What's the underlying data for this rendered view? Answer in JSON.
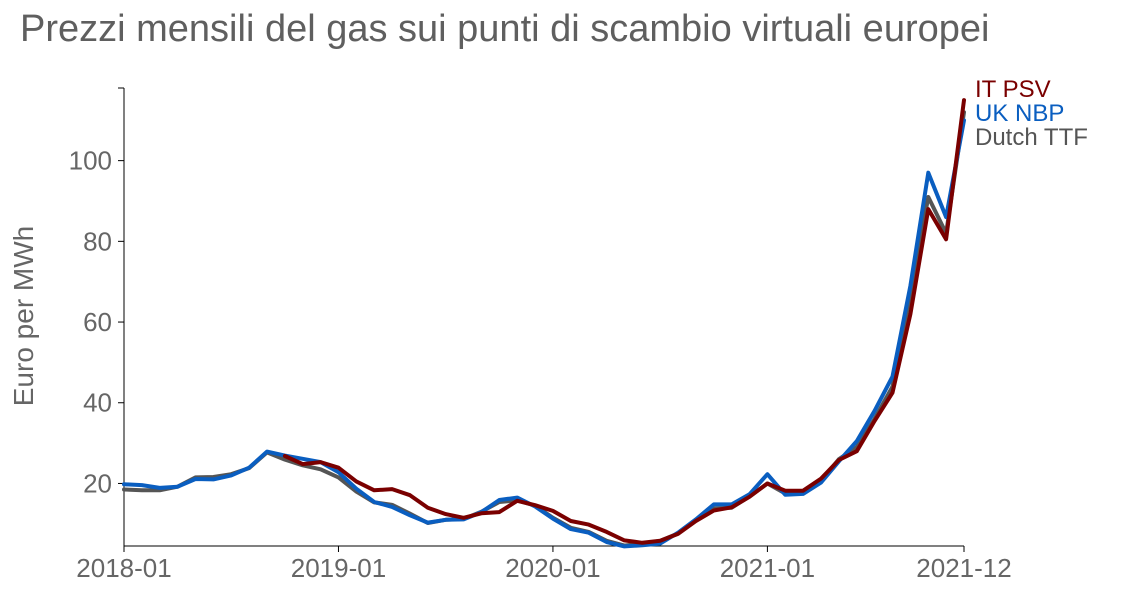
{
  "chart_data": {
    "type": "line",
    "title": "Prezzi mensili del gas sui punti di scambio virtuali europei",
    "ylabel": "Euro per MWh",
    "xlabel": "",
    "x_ticks": [
      "2018-01",
      "2019-01",
      "2020-01",
      "2021-01",
      "2021-12"
    ],
    "y_ticks": [
      20,
      40,
      60,
      80,
      100
    ],
    "ylim": [
      4.5,
      118
    ],
    "xlim": [
      "2018-01",
      "2021-12"
    ],
    "grid": false,
    "legend_placement": "end-of-lines",
    "x": [
      "2018-01",
      "2018-02",
      "2018-03",
      "2018-04",
      "2018-05",
      "2018-06",
      "2018-07",
      "2018-08",
      "2018-09",
      "2018-10",
      "2018-11",
      "2018-12",
      "2019-01",
      "2019-02",
      "2019-03",
      "2019-04",
      "2019-05",
      "2019-06",
      "2019-07",
      "2019-08",
      "2019-09",
      "2019-10",
      "2019-11",
      "2019-12",
      "2020-01",
      "2020-02",
      "2020-03",
      "2020-04",
      "2020-05",
      "2020-06",
      "2020-07",
      "2020-08",
      "2020-09",
      "2020-10",
      "2020-11",
      "2020-12",
      "2021-01",
      "2021-02",
      "2021-03",
      "2021-04",
      "2021-05",
      "2021-06",
      "2021-07",
      "2021-08",
      "2021-09",
      "2021-10",
      "2021-11",
      "2021-12"
    ],
    "series": [
      {
        "name": "Dutch TTF",
        "color": "#555555",
        "values": [
          18.5,
          18.3,
          18.3,
          19.2,
          21.5,
          21.6,
          22.3,
          23.8,
          27.7,
          25.9,
          24.5,
          23.5,
          21.5,
          18.0,
          15.3,
          14.7,
          12.5,
          10.2,
          11.0,
          11.2,
          13.0,
          15.4,
          15.8,
          14.5,
          11.5,
          9.0,
          8.0,
          5.8,
          4.6,
          5.1,
          5.8,
          7.6,
          11.0,
          13.8,
          14.0,
          16.8,
          20.0,
          17.5,
          17.8,
          20.7,
          26.0,
          29.0,
          36.0,
          44.0,
          67.0,
          91.0,
          82.0,
          112.0
        ]
      },
      {
        "name": "UK NBP",
        "color": "#0a5ec0",
        "values": [
          19.8,
          19.6,
          18.9,
          19.2,
          21.1,
          21.0,
          22.0,
          23.9,
          27.9,
          26.9,
          26.1,
          25.3,
          22.8,
          18.7,
          15.4,
          14.2,
          12.1,
          10.3,
          11.0,
          11.1,
          12.9,
          15.9,
          16.5,
          14.3,
          11.3,
          8.7,
          7.8,
          5.5,
          4.4,
          4.7,
          5.1,
          7.8,
          11.1,
          14.8,
          14.8,
          17.3,
          22.3,
          17.2,
          17.4,
          20.2,
          25.5,
          30.5,
          38.0,
          46.5,
          69.0,
          97.0,
          86.0,
          110.0
        ]
      },
      {
        "name": "IT PSV",
        "color": "#7a0000",
        "values": [
          null,
          null,
          null,
          null,
          null,
          null,
          null,
          null,
          null,
          26.8,
          24.8,
          25.3,
          23.9,
          20.5,
          18.3,
          18.6,
          17.1,
          14.0,
          12.4,
          11.5,
          12.6,
          12.9,
          15.7,
          14.6,
          13.2,
          10.7,
          9.8,
          8.0,
          5.9,
          5.3,
          5.8,
          7.5,
          10.7,
          13.3,
          14.1,
          16.7,
          20.0,
          18.2,
          18.2,
          21.2,
          25.8,
          28.0,
          35.5,
          42.5,
          62.0,
          88.0,
          80.5,
          115.0
        ]
      }
    ]
  }
}
